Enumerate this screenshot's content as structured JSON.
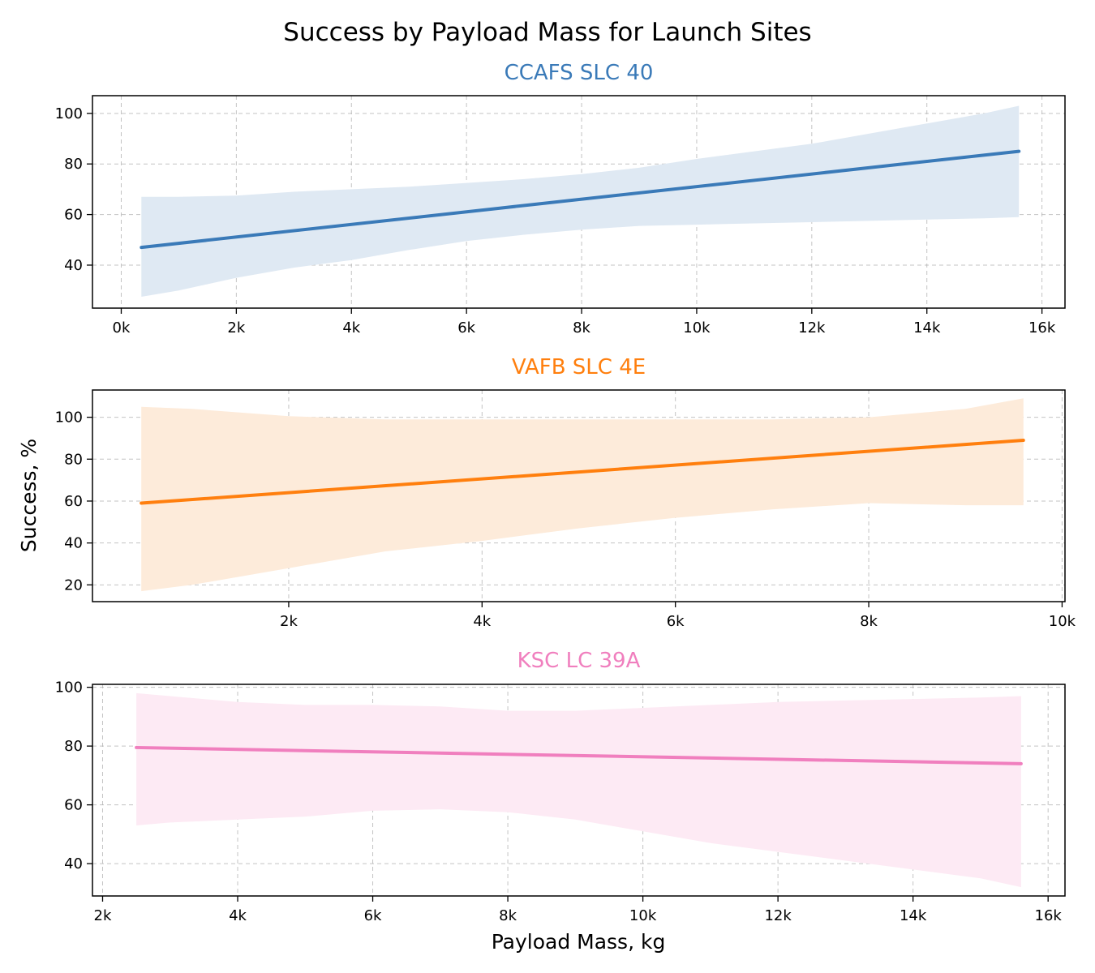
{
  "figure": {
    "title": "Success by Payload Mass for Launch Sites",
    "ylabel": "Success, %",
    "xlabel": "Payload Mass, kg"
  },
  "chart_data": [
    {
      "type": "line",
      "title": "CCAFS SLC 40",
      "color": "#3a7ab8",
      "band_color": "#dfe9f3",
      "xlim": [
        -500,
        16400
      ],
      "ylim": [
        23,
        107
      ],
      "xticks": [
        0,
        2000,
        4000,
        6000,
        8000,
        10000,
        12000,
        14000,
        16000
      ],
      "xtick_labels": [
        "0k",
        "2k",
        "4k",
        "6k",
        "8k",
        "10k",
        "12k",
        "14k",
        "16k"
      ],
      "yticks": [
        40,
        60,
        80,
        100
      ],
      "series": [
        {
          "x": [
            350,
            15600
          ],
          "y": [
            47,
            85
          ],
          "ci_x": [
            350,
            1000,
            2000,
            3000,
            4000,
            5000,
            6000,
            7000,
            8000,
            9000,
            10000,
            11000,
            12000,
            13000,
            14000,
            15000,
            15600
          ],
          "ci_upper": [
            67,
            67,
            67.5,
            69,
            70,
            71,
            72.5,
            74,
            76,
            78.5,
            82,
            85,
            88,
            92,
            96,
            100,
            103
          ],
          "ci_lower": [
            27.5,
            30,
            35,
            39,
            42,
            46,
            49.5,
            52,
            54,
            55.5,
            56,
            56.5,
            57,
            57.5,
            58,
            58.5,
            59
          ]
        }
      ]
    },
    {
      "type": "line",
      "title": "VAFB SLC 4E",
      "color": "#ff7f0e",
      "band_color": "#fdebda",
      "xlim": [
        -30,
        10030
      ],
      "ylim": [
        12,
        113
      ],
      "xticks": [
        2000,
        4000,
        6000,
        8000,
        10000
      ],
      "xtick_labels": [
        "2k",
        "4k",
        "6k",
        "8k",
        "10k"
      ],
      "yticks": [
        20,
        40,
        60,
        80,
        100
      ],
      "series": [
        {
          "x": [
            475,
            9600
          ],
          "y": [
            59,
            89
          ],
          "ci_x": [
            475,
            1000,
            2000,
            3000,
            4000,
            5000,
            6000,
            7000,
            8000,
            9000,
            9600
          ],
          "ci_upper": [
            105,
            104,
            100.5,
            99,
            99,
            99,
            99,
            99,
            100,
            104,
            109
          ],
          "ci_lower": [
            17,
            20,
            28,
            36,
            41,
            47,
            52,
            56,
            59,
            58,
            58
          ]
        }
      ]
    },
    {
      "type": "line",
      "title": "KSC LC 39A",
      "color": "#f07fbe",
      "band_color": "#fdeaf4",
      "xlim": [
        1850,
        16250
      ],
      "ylim": [
        29,
        101
      ],
      "xticks": [
        2000,
        4000,
        6000,
        8000,
        10000,
        12000,
        14000,
        16000
      ],
      "xtick_labels": [
        "2k",
        "4k",
        "6k",
        "8k",
        "10k",
        "12k",
        "14k",
        "16k"
      ],
      "yticks": [
        40,
        60,
        80,
        100
      ],
      "series": [
        {
          "x": [
            2500,
            15600
          ],
          "y": [
            79.5,
            74
          ],
          "ci_x": [
            2500,
            3000,
            4000,
            5000,
            6000,
            7000,
            8000,
            9000,
            10000,
            11000,
            12000,
            13000,
            14000,
            15000,
            15600
          ],
          "ci_upper": [
            98,
            97,
            95,
            94,
            94,
            93.5,
            92,
            92,
            93,
            94,
            95,
            95.5,
            96,
            96.5,
            97
          ],
          "ci_lower": [
            53,
            54,
            55,
            56,
            58,
            58.5,
            57.5,
            55,
            51,
            47,
            44,
            41,
            38,
            35,
            32
          ]
        }
      ]
    }
  ]
}
